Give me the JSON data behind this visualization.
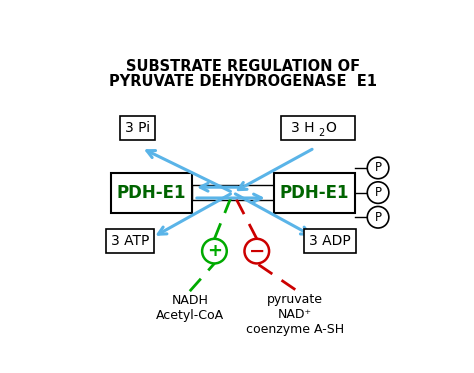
{
  "title_line1": "SUBSTRATE REGULATION OF",
  "title_line2": "PYRUVATE DEHYDROGENASE  E1",
  "bg_color": "#ffffff",
  "box_left_label": "PDH-E1",
  "box_right_label": "PDH-E1",
  "pdh_color": "#006400",
  "box_border_color": "#000000",
  "arrow_color": "#5ab4e8",
  "green_color": "#00aa00",
  "red_color": "#cc0000",
  "pi_label": "3 Pi",
  "atp_label": "3 ATP",
  "adp_label": "3 ADP",
  "nadh_label": "NADH\nAcetyl-CoA",
  "pyruvate_label": "pyruvate\nNAD⁺\ncoenzyme A-SH",
  "figsize": [
    4.74,
    3.73
  ],
  "dpi": 100
}
